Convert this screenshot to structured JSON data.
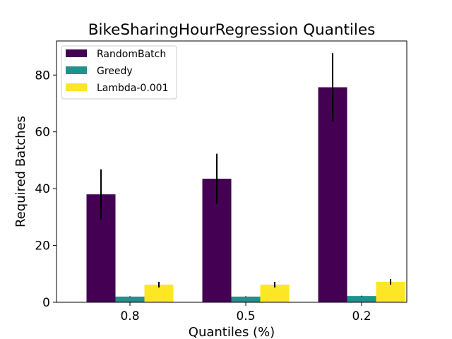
{
  "chart_data": {
    "type": "bar",
    "title": "BikeSharingHourRegression Quantiles",
    "xlabel": "Quantiles (%)",
    "ylabel": "Required Batches",
    "categories": [
      "0.8",
      "0.5",
      "0.2"
    ],
    "ylim": [
      0,
      92
    ],
    "yticks": [
      0,
      20,
      40,
      60,
      80
    ],
    "grid": false,
    "legend_position": "top-left",
    "error_bars": true,
    "series": [
      {
        "name": "RandomBatch",
        "color": "#440154",
        "values": [
          38,
          43.5,
          75.7
        ],
        "errors": [
          8.8,
          8.8,
          12
        ]
      },
      {
        "name": "Greedy",
        "color": "#21918c",
        "values": [
          2,
          2,
          2.2
        ],
        "errors": [
          0.1,
          0.1,
          0.1
        ]
      },
      {
        "name": "Lambda-0.001",
        "color": "#fde725",
        "values": [
          6.2,
          6.2,
          7.2
        ],
        "errors": [
          1,
          1,
          1
        ]
      }
    ]
  }
}
